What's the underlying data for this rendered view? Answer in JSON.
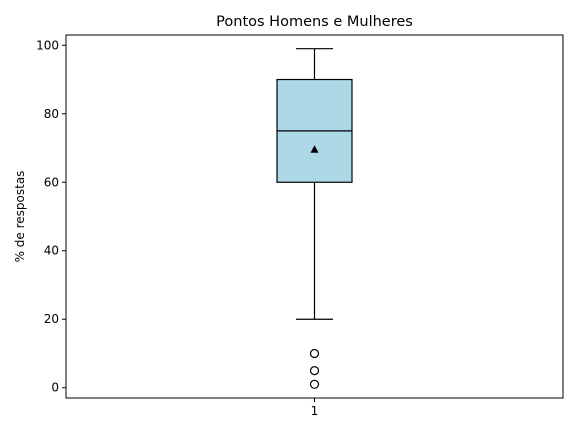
{
  "chart_data": {
    "type": "boxplot",
    "title": "Pontos Homens e Mulheres",
    "xlabel": "",
    "ylabel": "% de respostas",
    "categories": [
      "1"
    ],
    "ylim": [
      -3,
      103
    ],
    "yticks": [
      0,
      20,
      40,
      60,
      80,
      100
    ],
    "boxes": [
      {
        "category": "1",
        "whisker_low": 20,
        "q1": 60,
        "median": 75,
        "q3": 90,
        "whisker_high": 99,
        "mean": 69.5,
        "outliers": [
          1,
          5,
          10
        ],
        "fill_color": "#add8e6"
      }
    ],
    "grid": false,
    "legend": false
  }
}
